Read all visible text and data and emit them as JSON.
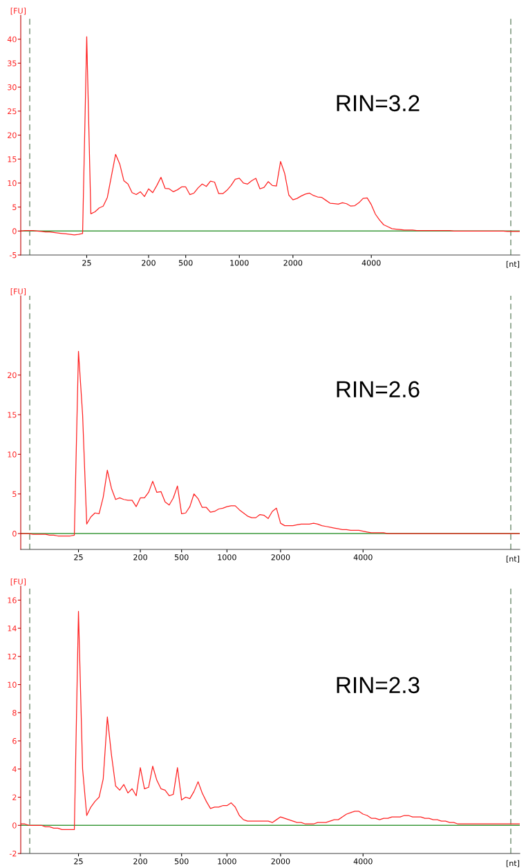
{
  "chart_data": [
    {
      "type": "line",
      "xlabel": "[nt]",
      "ylabel": "[FU]",
      "annotations": [
        "RIN=3.2"
      ],
      "grid": false,
      "legend": false,
      "ylim": [
        -5,
        45
      ],
      "yticks": [
        -5,
        0,
        5,
        10,
        15,
        20,
        25,
        30,
        35,
        40
      ],
      "categories": [
        null,
        null,
        null,
        null,
        null,
        null,
        null,
        null,
        null,
        null,
        null,
        null,
        null,
        null,
        null,
        null,
        "25",
        null,
        null,
        null,
        null,
        null,
        null,
        null,
        null,
        null,
        null,
        null,
        null,
        null,
        null,
        "200",
        null,
        null,
        null,
        null,
        null,
        null,
        null,
        null,
        "500",
        null,
        null,
        null,
        null,
        null,
        null,
        null,
        null,
        null,
        null,
        null,
        null,
        "1000",
        null,
        null,
        null,
        null,
        null,
        null,
        null,
        null,
        null,
        null,
        null,
        null,
        "2000",
        null,
        null,
        null,
        null,
        null,
        null,
        null,
        null,
        null,
        null,
        null,
        null,
        null,
        null,
        null,
        null,
        null,
        null,
        "4000",
        null,
        null,
        null,
        null,
        null,
        null,
        null,
        null,
        null,
        null,
        null,
        null,
        null,
        null,
        null,
        null,
        null,
        null,
        null,
        null,
        null,
        null,
        null,
        null,
        null,
        null,
        null,
        null,
        null,
        null,
        null,
        null,
        null,
        null,
        null,
        null
      ],
      "ref_lines": [
        {
          "axis": "y",
          "value": 0,
          "color": "#3c9a3c",
          "line_style": "solid"
        }
      ],
      "series": [
        {
          "color": "#ff2020",
          "values": [
            0,
            0.1,
            0.1,
            0.1,
            0,
            -0.1,
            -0.2,
            -0.2,
            -0.3,
            -0.4,
            -0.5,
            -0.6,
            -0.7,
            -0.8,
            -0.7,
            -0.5,
            40.5,
            3.6,
            4,
            4.8,
            5.2,
            7,
            11.5,
            16,
            14,
            10.5,
            9.8,
            8,
            7.6,
            8.2,
            7.2,
            8.8,
            8,
            9.5,
            11.2,
            8.9,
            8.8,
            8.2,
            8.6,
            9.2,
            9.2,
            7.6,
            7.9,
            9,
            9.8,
            9.3,
            10.4,
            10.2,
            7.8,
            7.8,
            8.5,
            9.5,
            10.8,
            11,
            10,
            9.8,
            10.5,
            11,
            8.8,
            9.1,
            10.3,
            9.5,
            9.4,
            14.5,
            12,
            7.5,
            6.5,
            6.8,
            7.3,
            7.7,
            7.9,
            7.4,
            7.1,
            7,
            6.4,
            5.8,
            5.7,
            5.6,
            5.9,
            5.7,
            5.2,
            5.3,
            5.9,
            6.8,
            6.9,
            5.5,
            3.5,
            2.3,
            1.3,
            0.9,
            0.5,
            0.4,
            0.3,
            0.2,
            0.2,
            0.2,
            0.1,
            0.1,
            0.1,
            0.1,
            0.1,
            0.1,
            0.1,
            0.1,
            0.1,
            0,
            0,
            0,
            0,
            0,
            0,
            0,
            0,
            0,
            0,
            0,
            0,
            0,
            -0.1,
            -0.1,
            -0.1,
            -0.1
          ]
        }
      ]
    },
    {
      "type": "line",
      "xlabel": "[nt]",
      "ylabel": "[FU]",
      "annotations": [
        "RIN=2.6"
      ],
      "grid": false,
      "legend": false,
      "ylim": [
        -2,
        30
      ],
      "yticks": [
        0,
        5,
        10,
        15,
        20
      ],
      "categories": [
        null,
        null,
        null,
        null,
        null,
        null,
        null,
        null,
        null,
        null,
        null,
        null,
        null,
        null,
        "25",
        null,
        null,
        null,
        null,
        null,
        null,
        null,
        null,
        null,
        null,
        null,
        null,
        null,
        null,
        "200",
        null,
        null,
        null,
        null,
        null,
        null,
        null,
        null,
        null,
        "500",
        null,
        null,
        null,
        null,
        null,
        null,
        null,
        null,
        null,
        null,
        "1000",
        null,
        null,
        null,
        null,
        null,
        null,
        null,
        null,
        null,
        null,
        null,
        null,
        "2000",
        null,
        null,
        null,
        null,
        null,
        null,
        null,
        null,
        null,
        null,
        null,
        null,
        null,
        null,
        null,
        null,
        null,
        null,
        null,
        "4000",
        null,
        null,
        null,
        null,
        null,
        null,
        null,
        null,
        null,
        null,
        null,
        null,
        null,
        null,
        null,
        null,
        null,
        null,
        null,
        null,
        null,
        null,
        null,
        null,
        null,
        null,
        null,
        null,
        null,
        null,
        null,
        null,
        null,
        null,
        null,
        null,
        null,
        null
      ],
      "ref_lines": [
        {
          "axis": "y",
          "value": 0,
          "color": "#3c9a3c",
          "line_style": "solid"
        }
      ],
      "series": [
        {
          "color": "#ff2020",
          "values": [
            0,
            0,
            0,
            -0.1,
            -0.1,
            -0.1,
            -0.1,
            -0.2,
            -0.2,
            -0.3,
            -0.3,
            -0.3,
            -0.3,
            -0.2,
            23,
            15,
            1.2,
            2.1,
            2.6,
            2.5,
            4.6,
            8,
            5.7,
            4.3,
            4.5,
            4.3,
            4.2,
            4.2,
            3.4,
            4.5,
            4.5,
            5.2,
            6.6,
            5.2,
            5.3,
            4,
            3.6,
            4.5,
            6,
            2.5,
            2.6,
            3.4,
            5,
            4.4,
            3.3,
            3.3,
            2.7,
            2.8,
            3.1,
            3.2,
            3.4,
            3.5,
            3.5,
            3,
            2.6,
            2.2,
            2,
            2,
            2.4,
            2.3,
            1.9,
            2.8,
            3.2,
            1.3,
            1,
            1,
            1,
            1.1,
            1.2,
            1.2,
            1.2,
            1.3,
            1.2,
            1,
            0.9,
            0.8,
            0.7,
            0.6,
            0.5,
            0.5,
            0.4,
            0.4,
            0.4,
            0.3,
            0.2,
            0.1,
            0.1,
            0.1,
            0.1,
            0,
            0,
            0,
            0,
            0,
            0,
            0,
            0,
            0,
            0,
            0,
            0,
            0,
            0,
            0,
            0,
            0,
            0,
            0,
            0,
            0,
            0,
            0,
            0,
            0,
            0,
            0,
            0,
            0,
            0,
            0,
            0,
            0
          ]
        }
      ]
    },
    {
      "type": "line",
      "xlabel": "[nt]",
      "ylabel": "[FU]",
      "annotations": [
        "RIN=2.3"
      ],
      "grid": false,
      "legend": false,
      "ylim": [
        -2,
        17
      ],
      "yticks": [
        -2,
        0,
        2,
        4,
        6,
        8,
        10,
        12,
        14,
        16
      ],
      "categories": [
        null,
        null,
        null,
        null,
        null,
        null,
        null,
        null,
        null,
        null,
        null,
        null,
        null,
        null,
        "25",
        null,
        null,
        null,
        null,
        null,
        null,
        null,
        null,
        null,
        null,
        null,
        null,
        null,
        null,
        "200",
        null,
        null,
        null,
        null,
        null,
        null,
        null,
        null,
        null,
        "500",
        null,
        null,
        null,
        null,
        null,
        null,
        null,
        null,
        null,
        null,
        "1000",
        null,
        null,
        null,
        null,
        null,
        null,
        null,
        null,
        null,
        null,
        null,
        null,
        "2000",
        null,
        null,
        null,
        null,
        null,
        null,
        null,
        null,
        null,
        null,
        null,
        null,
        null,
        null,
        null,
        null,
        null,
        null,
        null,
        "4000",
        null,
        null,
        null,
        null,
        null,
        null,
        null,
        null,
        null,
        null,
        null,
        null,
        null,
        null,
        null,
        null,
        null,
        null,
        null,
        null,
        null,
        null,
        null,
        null,
        null,
        null,
        null,
        null,
        null,
        null,
        null,
        null,
        null,
        null,
        null,
        null,
        null,
        null
      ],
      "ref_lines": [
        {
          "axis": "y",
          "value": 0,
          "color": "#3c9a3c",
          "line_style": "solid"
        }
      ],
      "series": [
        {
          "color": "#ff2020",
          "values": [
            0.1,
            0.1,
            0,
            0,
            0,
            0,
            -0.1,
            -0.1,
            -0.2,
            -0.2,
            -0.3,
            -0.3,
            -0.3,
            -0.3,
            15.2,
            4,
            0.7,
            1.3,
            1.7,
            2,
            3.3,
            7.7,
            5,
            2.8,
            2.5,
            2.9,
            2.3,
            2.6,
            2.1,
            4.1,
            2.6,
            2.7,
            4.2,
            3.2,
            2.6,
            2.5,
            2.1,
            2.2,
            4.1,
            1.8,
            2,
            1.9,
            2.4,
            3.1,
            2.3,
            1.7,
            1.2,
            1.3,
            1.3,
            1.4,
            1.4,
            1.6,
            1.3,
            0.7,
            0.4,
            0.3,
            0.3,
            0.3,
            0.3,
            0.3,
            0.3,
            0.2,
            0.4,
            0.6,
            0.5,
            0.4,
            0.3,
            0.2,
            0.2,
            0.1,
            0.1,
            0.1,
            0.2,
            0.2,
            0.2,
            0.3,
            0.4,
            0.4,
            0.6,
            0.8,
            0.9,
            1,
            1,
            0.8,
            0.7,
            0.5,
            0.5,
            0.4,
            0.5,
            0.5,
            0.6,
            0.6,
            0.6,
            0.7,
            0.7,
            0.6,
            0.6,
            0.6,
            0.5,
            0.5,
            0.4,
            0.4,
            0.3,
            0.3,
            0.2,
            0.2,
            0.1,
            0.1,
            0.1,
            0.1,
            0.1,
            0.1,
            0.1,
            0.1,
            0.1,
            0.1,
            0.1,
            0.1,
            0.1,
            0.1,
            0.1,
            0.1
          ]
        }
      ]
    }
  ]
}
